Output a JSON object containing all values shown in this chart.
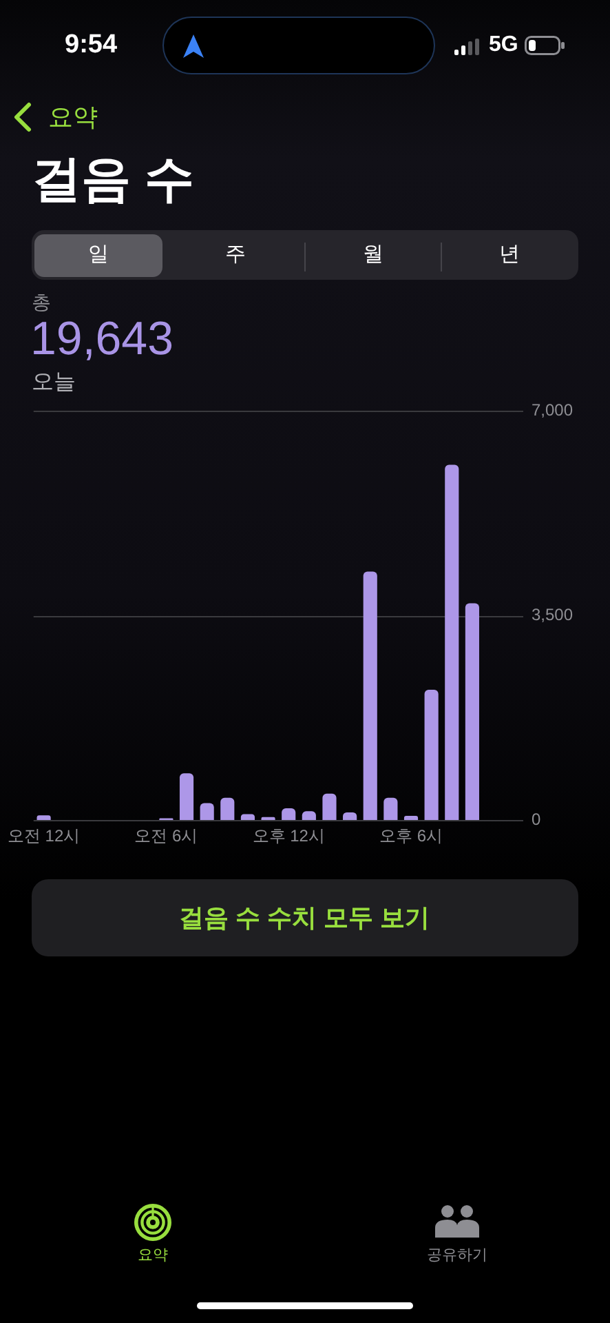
{
  "chart_data": {
    "type": "bar",
    "title": "걸음 수",
    "categories": [
      "오전 12시",
      null,
      null,
      null,
      null,
      null,
      "오전 6시",
      null,
      null,
      null,
      null,
      null,
      "오후 12시",
      null,
      null,
      null,
      null,
      null,
      "오후 6시",
      null,
      null,
      null,
      null,
      null
    ],
    "values": [
      80,
      null,
      null,
      null,
      null,
      null,
      30,
      800,
      290,
      380,
      100,
      50,
      200,
      150,
      450,
      130,
      4250,
      380,
      70,
      2230,
      6080,
      3710,
      null,
      null
    ],
    "color": "#ad97e8",
    "ylim": [
      0,
      7000
    ],
    "yticks": [
      0,
      {
        "value": 3500,
        "label": "3,500"
      },
      {
        "value": 7000,
        "label": "7,000"
      }
    ],
    "grid": "y",
    "annotations": [
      "9:54",
      "5G",
      "요약",
      "일",
      "주",
      "월",
      "년",
      "총",
      "19,643",
      "오늘",
      "걸음 수 수치 모두 보기",
      "요약",
      "공유하기"
    ]
  }
}
